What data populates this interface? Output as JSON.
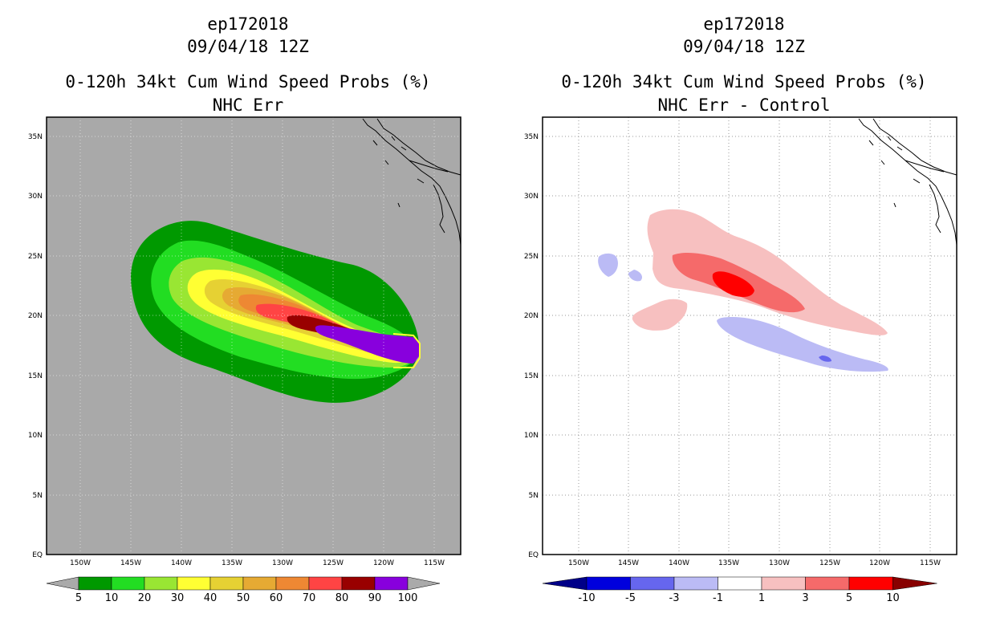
{
  "left": {
    "titles": [
      "ep172018",
      "09/04/18 12Z",
      "0-120h 34kt Cum Wind Speed Probs (%)",
      "NHC Err"
    ],
    "colorbar": {
      "labels": [
        "5",
        "10",
        "20",
        "30",
        "40",
        "50",
        "60",
        "70",
        "80",
        "90",
        "100"
      ],
      "colors": [
        "#009900",
        "#22dd22",
        "#99e633",
        "#ffff33",
        "#e6d133",
        "#e6aa33",
        "#ee8833",
        "#ff4444",
        "#990000",
        "#8800dd"
      ],
      "end_color": "#aaaaaa"
    },
    "background": "#a9a9a9"
  },
  "right": {
    "titles": [
      "ep172018",
      "09/04/18 12Z",
      "0-120h 34kt Cum Wind Speed Probs (%)",
      "NHC Err - Control"
    ],
    "colorbar": {
      "labels": [
        "-10",
        "-5",
        "-3",
        "-1",
        "1",
        "3",
        "5",
        "10"
      ],
      "colors": [
        "#0000dd",
        "#6666ee",
        "#bbbbf5",
        "#ffffff",
        "#f7c0c0",
        "#f56a6a",
        "#ff0000"
      ],
      "low_end_color": "#000088",
      "high_end_color": "#880000"
    },
    "background": "#ffffff"
  },
  "axes": {
    "lat_labels": [
      "35N",
      "30N",
      "25N",
      "20N",
      "15N",
      "10N",
      "5N",
      "EQ"
    ],
    "lon_labels": [
      "150W",
      "145W",
      "140W",
      "135W",
      "130W",
      "125W",
      "120W",
      "115W"
    ]
  }
}
